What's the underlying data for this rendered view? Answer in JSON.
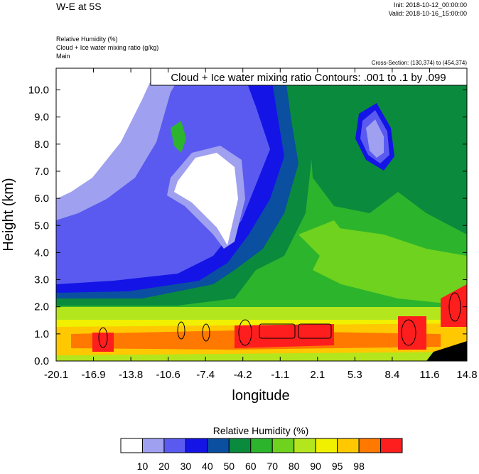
{
  "header": {
    "title": "W-E at 5S",
    "init": "Init: 2018-10-12_00:00:00",
    "valid": "Valid: 2018-10-16_15:00:00",
    "var1": "Relative Humidity   (%)",
    "var2": "Cloud + Ice water mixing ratio   (g/kg)",
    "var3": "Main",
    "cross_section": "Cross-Section: (130,374) to (454,374)"
  },
  "chart_data": {
    "type": "heatmap",
    "title": "",
    "xlabel": "longitude",
    "ylabel": "Height (km)",
    "x_ticks": [
      "-20.1",
      "-16.9",
      "-13.8",
      "-10.6",
      "-7.4",
      "-4.2",
      "-1.1",
      "2.1",
      "5.3",
      "8.4",
      "11.6",
      "14.8"
    ],
    "y_ticks": [
      "0.0",
      "1.0",
      "2.0",
      "3.0",
      "4.0",
      "5.0",
      "6.0",
      "7.0",
      "8.0",
      "9.0",
      "10.0"
    ],
    "xlim": [
      -20.1,
      14.8
    ],
    "ylim": [
      0.0,
      10.8
    ],
    "annotation": "Cloud + Ice water mixing ratio Contours: .001 to .1 by .099",
    "colorbar": {
      "title": "Relative Humidity  (%)",
      "labels": [
        "10",
        "20",
        "30",
        "40",
        "50",
        "60",
        "70",
        "80",
        "90",
        "95",
        "98"
      ],
      "colors": [
        "#ffffff",
        "#a0a0f0",
        "#5a5af0",
        "#1414e6",
        "#0a4fa0",
        "#0a8a3c",
        "#2db42d",
        "#6ed21e",
        "#b4e61e",
        "#f0f000",
        "#ffc800",
        "#ff7800",
        "#ff1e1e"
      ]
    }
  }
}
